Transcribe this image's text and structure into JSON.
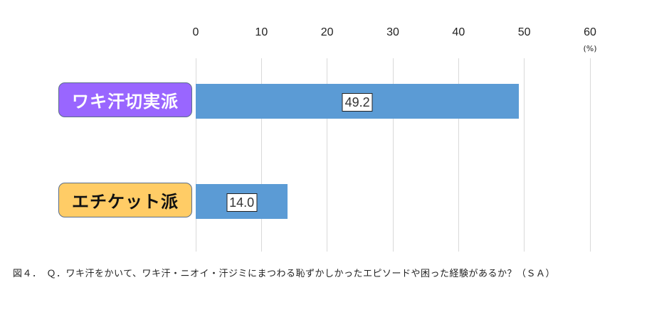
{
  "chart_data": {
    "type": "bar",
    "orientation": "horizontal",
    "categories": [
      "ワキ汗切実派",
      "エチケット派"
    ],
    "values": [
      49.2,
      14.0
    ],
    "data_labels": [
      "49.2",
      "14.0"
    ],
    "xlim": [
      0,
      60
    ],
    "xticks": [
      0,
      10,
      20,
      30,
      40,
      50,
      60
    ],
    "xtick_labels": [
      "0",
      "10",
      "20",
      "30",
      "40",
      "50",
      "60"
    ],
    "unit_label": "(%)",
    "grid": true,
    "axis_position": "top",
    "bar_color": "#5b9bd5",
    "category_colors": [
      "#9966ff",
      "#ffcc66"
    ],
    "category_text_colors": [
      "#ffffff",
      "#111111"
    ],
    "title": "図４．　Ｑ．ワキ汗をかいて、ワキ汗・ニオイ・汗ジミにまつわる恥ずかしかったエピソードや困った経験があるか？（ＳＡ）"
  }
}
